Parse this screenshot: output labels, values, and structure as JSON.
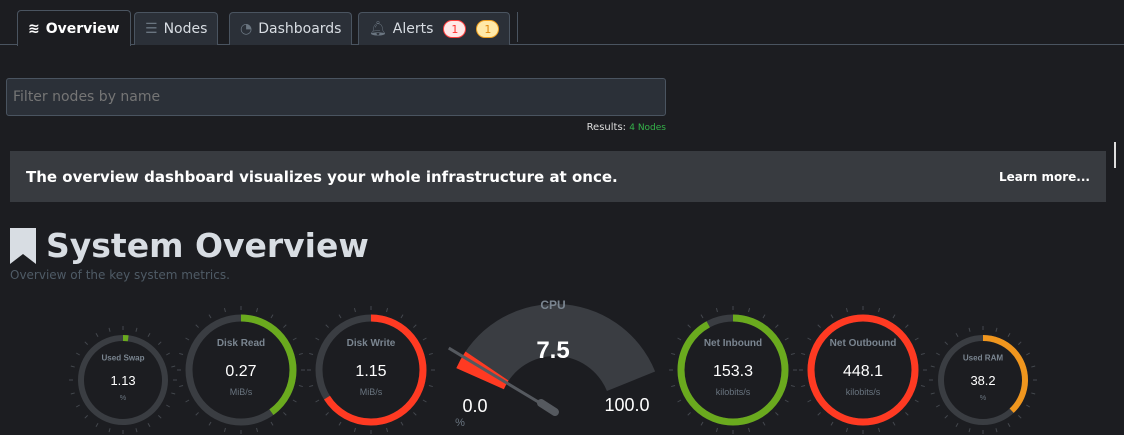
{
  "tabs": [
    {
      "label": "Overview",
      "icon": "chart-icon",
      "active": true
    },
    {
      "label": "Nodes",
      "icon": "server-icon"
    },
    {
      "label": "Dashboards",
      "icon": "gauge-icon"
    },
    {
      "label": "Alerts",
      "icon": "bell-icon",
      "badges": [
        {
          "count": "1",
          "color": "#ff4040"
        },
        {
          "count": "1",
          "color": "#f0a020"
        }
      ]
    }
  ],
  "filter": {
    "placeholder": "Filter nodes by name"
  },
  "results": {
    "label": "Results:",
    "value": "4 Nodes"
  },
  "banner": {
    "text": "The overview dashboard visualizes your whole infrastructure at once.",
    "link": "Learn more..."
  },
  "section": {
    "title": "System Overview",
    "subtitle": "Overview of the key system metrics."
  },
  "gauges": [
    {
      "label": "Used Swap",
      "value": "1.13",
      "unit": "%",
      "fill": 0.02,
      "color": "#6aaa1e"
    },
    {
      "label": "Disk Read",
      "value": "0.27",
      "unit": "MiB/s",
      "fill": 0.4,
      "color": "#6aaa1e"
    },
    {
      "label": "Disk Write",
      "value": "1.15",
      "unit": "MiB/s",
      "fill": 0.66,
      "color": "#ff3a22"
    },
    {
      "label": "Net Inbound",
      "value": "153.3",
      "unit": "kilobits/s",
      "fill": 0.92,
      "color": "#6aaa1e"
    },
    {
      "label": "Net Outbound",
      "value": "448.1",
      "unit": "kilobits/s",
      "fill": 1.0,
      "color": "#ff3a22"
    },
    {
      "label": "Used RAM",
      "value": "38.2",
      "unit": "%",
      "fill": 0.38,
      "color": "#f0961e"
    }
  ],
  "cpu": {
    "label": "CPU",
    "value": "7.5",
    "min": "0.0",
    "max": "100.0",
    "unit": "%",
    "fill": 0.075,
    "color": "#ff3a22"
  }
}
